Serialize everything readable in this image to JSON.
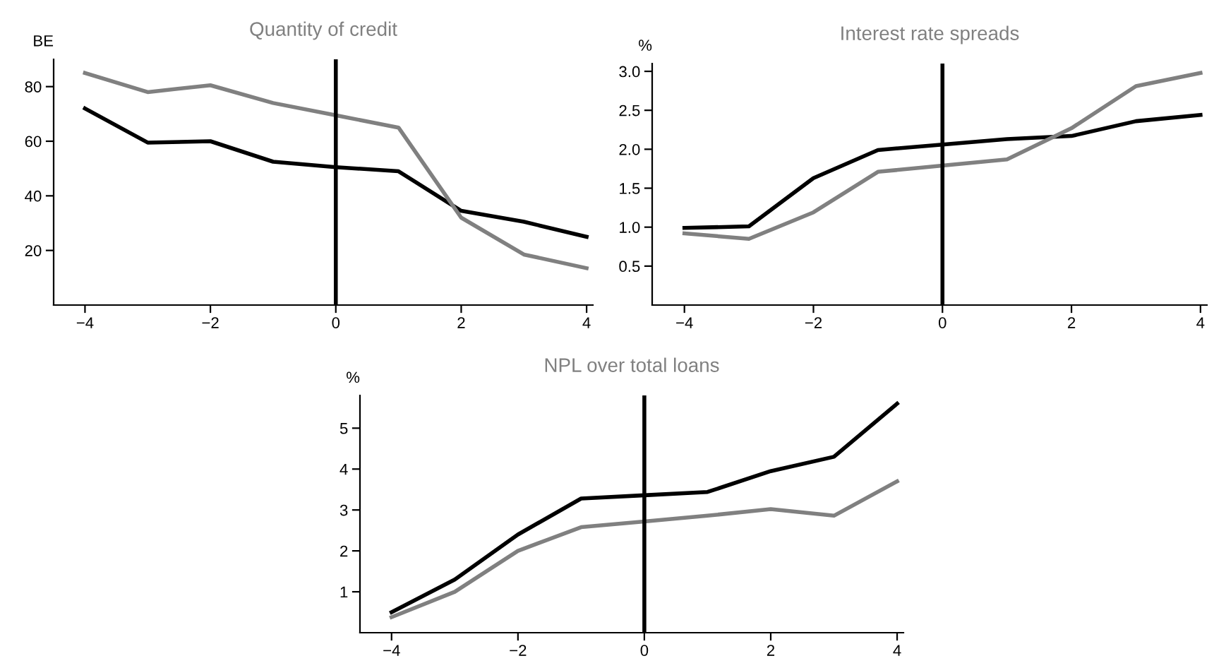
{
  "chart_data": [
    {
      "type": "line",
      "title": "Quantity of credit",
      "ylabel": "BE",
      "x": [
        -4,
        -3,
        -2,
        -1,
        0,
        1,
        2,
        3,
        4
      ],
      "xlim": [
        -4.5,
        4.1
      ],
      "ylim": [
        0,
        90
      ],
      "xticks": [
        -4,
        -2,
        0,
        2,
        4
      ],
      "yticks": [
        20,
        40,
        60,
        80
      ],
      "series": [
        {
          "color": "#000000",
          "values": [
            72,
            59.5,
            60,
            52.5,
            50.5,
            49,
            34.5,
            30.5,
            25
          ]
        },
        {
          "color": "#808080",
          "values": [
            85,
            78,
            80.5,
            74,
            69.5,
            65,
            32,
            18.5,
            13.5
          ]
        }
      ],
      "ref_lines": [
        {
          "axis": "x",
          "value": 0,
          "color": "#000000"
        }
      ],
      "grid": false,
      "legend": false
    },
    {
      "type": "line",
      "title": "Interest rate spreads",
      "ylabel": "%",
      "x": [
        -4,
        -3,
        -2,
        -1,
        0,
        1,
        2,
        3,
        4
      ],
      "xlim": [
        -4.5,
        4.1
      ],
      "ylim": [
        0,
        3.1
      ],
      "xticks": [
        -4,
        -2,
        0,
        2,
        4
      ],
      "yticks": [
        {
          "value": 0.5,
          "label": "0.5"
        },
        {
          "value": 1,
          "label": "1.0"
        },
        {
          "value": 1.5,
          "label": "1.5"
        },
        {
          "value": 2,
          "label": "2.0"
        },
        {
          "value": 2.5,
          "label": "2.5"
        },
        {
          "value": 3,
          "label": "3.0"
        }
      ],
      "series": [
        {
          "color": "#000000",
          "values": [
            0.99,
            1.01,
            1.63,
            1.99,
            2.06,
            2.13,
            2.17,
            2.36,
            2.44
          ]
        },
        {
          "color": "#808080",
          "values": [
            0.92,
            0.85,
            1.19,
            1.71,
            1.79,
            1.87,
            2.27,
            2.81,
            2.98
          ]
        }
      ],
      "ref_lines": [
        {
          "axis": "x",
          "value": 0,
          "color": "#000000"
        }
      ],
      "grid": false,
      "legend": false
    },
    {
      "type": "line",
      "title": "NPL over total loans",
      "ylabel": "%",
      "x": [
        -4,
        -3,
        -2,
        -1,
        0,
        1,
        2,
        3,
        4
      ],
      "xlim": [
        -4.5,
        4.1
      ],
      "ylim": [
        0,
        5.8
      ],
      "xticks": [
        -4,
        -2,
        0,
        2,
        4
      ],
      "yticks": [
        1,
        2,
        3,
        4,
        5
      ],
      "series": [
        {
          "color": "#000000",
          "values": [
            0.5,
            1.3,
            2.4,
            3.28,
            3.36,
            3.44,
            3.95,
            4.3,
            5.6
          ]
        },
        {
          "color": "#808080",
          "values": [
            0.38,
            1.0,
            2.0,
            2.58,
            2.72,
            2.86,
            3.02,
            2.86,
            3.7
          ]
        }
      ],
      "ref_lines": [
        {
          "axis": "x",
          "value": 0,
          "color": "#000000"
        }
      ],
      "grid": false,
      "legend": false
    }
  ]
}
